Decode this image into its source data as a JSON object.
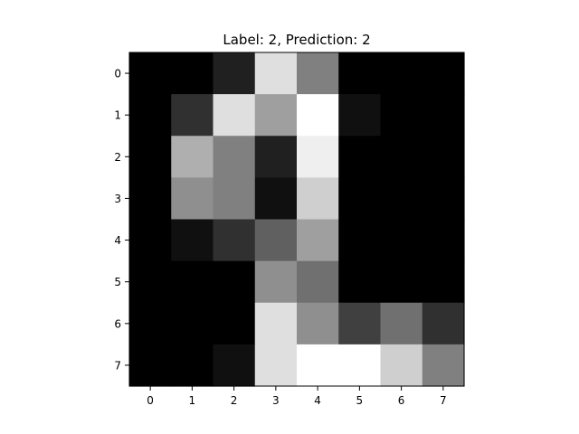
{
  "chart_data": {
    "type": "heatmap",
    "title": "Label: 2, Prediction: 2",
    "xlabel": "",
    "ylabel": "",
    "colormap": "gray",
    "vmin": 0,
    "vmax": 16,
    "x_ticks": [
      "0",
      "1",
      "2",
      "3",
      "4",
      "5",
      "6",
      "7"
    ],
    "y_ticks": [
      "0",
      "1",
      "2",
      "3",
      "4",
      "5",
      "6",
      "7"
    ],
    "values": [
      [
        0,
        0,
        2,
        14,
        8,
        0,
        0,
        0
      ],
      [
        0,
        3,
        14,
        10,
        16,
        1,
        0,
        0
      ],
      [
        0,
        11,
        8,
        2,
        15,
        0,
        0,
        0
      ],
      [
        0,
        9,
        8,
        1,
        13,
        0,
        0,
        0
      ],
      [
        0,
        1,
        3,
        6,
        10,
        0,
        0,
        0
      ],
      [
        0,
        0,
        0,
        9,
        7,
        0,
        0,
        0
      ],
      [
        0,
        0,
        0,
        14,
        9,
        4,
        7,
        3
      ],
      [
        0,
        0,
        1,
        14,
        16,
        16,
        13,
        8
      ]
    ],
    "grid": false,
    "legend": "none"
  }
}
